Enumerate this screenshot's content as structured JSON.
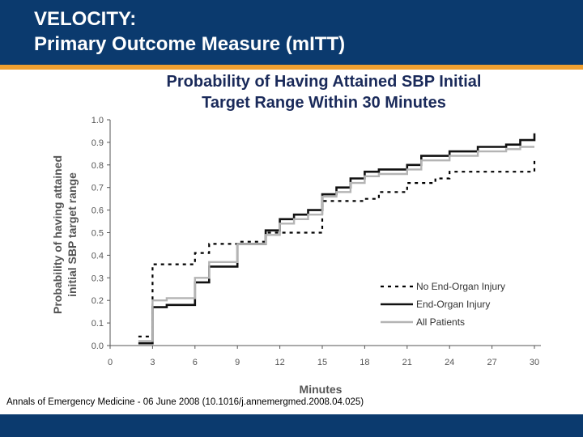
{
  "slide": {
    "title_line1": "VELOCITY:",
    "title_line2": "Primary Outcome Measure (mITT)",
    "citation": "Annals of Emergency Medicine - 06 June 2008 (10.1016/j.annemergmed.2008.04.025)",
    "colors": {
      "header": "#0b3a6e",
      "stripe": "#f0a030",
      "title": "#ffffff"
    }
  },
  "chart_data": {
    "type": "line",
    "title_line1": "Probability of Having Attained SBP Initial",
    "title_line2": "Target Range Within 30 Minutes",
    "xlabel": "Minutes",
    "ylabel_line1": "Probability of having attained",
    "ylabel_line2": "initial SBP target range",
    "xlim": [
      0,
      30
    ],
    "ylim": [
      0,
      1.0
    ],
    "xticks": [
      "0",
      "3",
      "6",
      "9",
      "12",
      "15",
      "18",
      "21",
      "24",
      "27",
      "30"
    ],
    "yticks": [
      "0.0",
      "0.1",
      "0.2",
      "0.3",
      "0.4",
      "0.5",
      "0.6",
      "0.7",
      "0.8",
      "0.9",
      "1.0"
    ],
    "legend_position": "bottom-right",
    "series": [
      {
        "name": "No End-Organ Injury",
        "style": "dotted",
        "color": "#000000",
        "points": [
          [
            2,
            0.04
          ],
          [
            3,
            0.04
          ],
          [
            3,
            0.36
          ],
          [
            6,
            0.36
          ],
          [
            6,
            0.41
          ],
          [
            7,
            0.41
          ],
          [
            7,
            0.45
          ],
          [
            9,
            0.45
          ],
          [
            9,
            0.46
          ],
          [
            11,
            0.46
          ],
          [
            11,
            0.5
          ],
          [
            13,
            0.5
          ],
          [
            13,
            0.5
          ],
          [
            15,
            0.5
          ],
          [
            15,
            0.64
          ],
          [
            18,
            0.64
          ],
          [
            18,
            0.65
          ],
          [
            19,
            0.65
          ],
          [
            19,
            0.68
          ],
          [
            21,
            0.68
          ],
          [
            21,
            0.72
          ],
          [
            23,
            0.72
          ],
          [
            23,
            0.74
          ],
          [
            24,
            0.74
          ],
          [
            24,
            0.77
          ],
          [
            30,
            0.77
          ],
          [
            30,
            0.82
          ]
        ]
      },
      {
        "name": "End-Organ Injury",
        "style": "solid-thick",
        "color": "#111111",
        "points": [
          [
            2,
            0.01
          ],
          [
            3,
            0.01
          ],
          [
            3,
            0.17
          ],
          [
            4,
            0.17
          ],
          [
            4,
            0.18
          ],
          [
            6,
            0.18
          ],
          [
            6,
            0.28
          ],
          [
            7,
            0.28
          ],
          [
            7,
            0.35
          ],
          [
            9,
            0.35
          ],
          [
            9,
            0.45
          ],
          [
            11,
            0.45
          ],
          [
            11,
            0.51
          ],
          [
            12,
            0.51
          ],
          [
            12,
            0.56
          ],
          [
            13,
            0.56
          ],
          [
            13,
            0.58
          ],
          [
            14,
            0.58
          ],
          [
            14,
            0.6
          ],
          [
            15,
            0.6
          ],
          [
            15,
            0.67
          ],
          [
            16,
            0.67
          ],
          [
            16,
            0.7
          ],
          [
            17,
            0.7
          ],
          [
            17,
            0.74
          ],
          [
            18,
            0.74
          ],
          [
            18,
            0.77
          ],
          [
            19,
            0.77
          ],
          [
            19,
            0.78
          ],
          [
            21,
            0.78
          ],
          [
            21,
            0.8
          ],
          [
            22,
            0.8
          ],
          [
            22,
            0.84
          ],
          [
            24,
            0.84
          ],
          [
            24,
            0.86
          ],
          [
            26,
            0.86
          ],
          [
            26,
            0.88
          ],
          [
            28,
            0.88
          ],
          [
            28,
            0.89
          ],
          [
            29,
            0.89
          ],
          [
            29,
            0.91
          ],
          [
            30,
            0.91
          ],
          [
            30,
            0.94
          ]
        ]
      },
      {
        "name": "All Patients",
        "style": "solid-gray",
        "color": "#b4b4b4",
        "points": [
          [
            2,
            0.02
          ],
          [
            3,
            0.02
          ],
          [
            3,
            0.2
          ],
          [
            4,
            0.2
          ],
          [
            4,
            0.21
          ],
          [
            6,
            0.21
          ],
          [
            6,
            0.3
          ],
          [
            7,
            0.3
          ],
          [
            7,
            0.37
          ],
          [
            9,
            0.37
          ],
          [
            9,
            0.45
          ],
          [
            11,
            0.45
          ],
          [
            11,
            0.49
          ],
          [
            12,
            0.49
          ],
          [
            12,
            0.54
          ],
          [
            13,
            0.54
          ],
          [
            13,
            0.56
          ],
          [
            14,
            0.56
          ],
          [
            14,
            0.58
          ],
          [
            15,
            0.58
          ],
          [
            15,
            0.66
          ],
          [
            16,
            0.66
          ],
          [
            16,
            0.68
          ],
          [
            17,
            0.68
          ],
          [
            17,
            0.72
          ],
          [
            18,
            0.72
          ],
          [
            18,
            0.75
          ],
          [
            19,
            0.75
          ],
          [
            19,
            0.76
          ],
          [
            21,
            0.76
          ],
          [
            21,
            0.78
          ],
          [
            22,
            0.78
          ],
          [
            22,
            0.82
          ],
          [
            24,
            0.82
          ],
          [
            24,
            0.84
          ],
          [
            26,
            0.84
          ],
          [
            26,
            0.86
          ],
          [
            28,
            0.86
          ],
          [
            28,
            0.87
          ],
          [
            29,
            0.87
          ],
          [
            29,
            0.88
          ],
          [
            30,
            0.88
          ]
        ]
      }
    ]
  }
}
